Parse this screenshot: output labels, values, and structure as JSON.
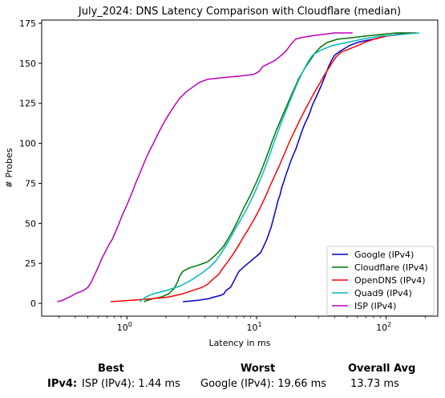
{
  "chart_data": {
    "type": "line",
    "title": "July_2024: DNS Latency Comparison with Cloudflare (median)",
    "xlabel": "Latency in ms",
    "ylabel": "# Probes",
    "xscale": "log",
    "xlim": [
      0.22,
      250
    ],
    "ylim": [
      -8,
      177
    ],
    "x_tick_labels": [
      "10^0",
      "10^1",
      "10^2"
    ],
    "x_tick_values": [
      1,
      10,
      100
    ],
    "y_ticks": [
      0,
      25,
      50,
      75,
      100,
      125,
      150,
      175
    ],
    "grid": false,
    "legend_position": "lower right",
    "series": [
      {
        "name": "Google (IPv4)",
        "color": "#0000cc",
        "points": [
          [
            2.7,
            1
          ],
          [
            3.6,
            2
          ],
          [
            4.3,
            3
          ],
          [
            4.7,
            4
          ],
          [
            5.3,
            5
          ],
          [
            5.6,
            6
          ],
          [
            5.8,
            8
          ],
          [
            6.3,
            10
          ],
          [
            6.5,
            12
          ],
          [
            6.7,
            14
          ],
          [
            6.9,
            16
          ],
          [
            7.1,
            18
          ],
          [
            7.3,
            20
          ],
          [
            7.8,
            22
          ],
          [
            8.3,
            24
          ],
          [
            8.9,
            26
          ],
          [
            9.5,
            28
          ],
          [
            10.2,
            30
          ],
          [
            10.8,
            32
          ],
          [
            11.4,
            36
          ],
          [
            12.0,
            40
          ],
          [
            12.5,
            44
          ],
          [
            13.0,
            48
          ],
          [
            13.4,
            52
          ],
          [
            13.8,
            56
          ],
          [
            14.2,
            60
          ],
          [
            14.6,
            64
          ],
          [
            15.2,
            68
          ],
          [
            15.6,
            72
          ],
          [
            16.2,
            76
          ],
          [
            16.8,
            80
          ],
          [
            17.5,
            84
          ],
          [
            18.2,
            88
          ],
          [
            19.0,
            92
          ],
          [
            20.0,
            96
          ],
          [
            20.8,
            100
          ],
          [
            21.6,
            104
          ],
          [
            22.5,
            108
          ],
          [
            23.5,
            112
          ],
          [
            24.8,
            116
          ],
          [
            26.0,
            120
          ],
          [
            27.0,
            124
          ],
          [
            28.5,
            128
          ],
          [
            30.0,
            132
          ],
          [
            31.5,
            136
          ],
          [
            33.0,
            140
          ],
          [
            34.5,
            144
          ],
          [
            36.0,
            148
          ],
          [
            38.0,
            152
          ],
          [
            40.0,
            155
          ],
          [
            45.0,
            158
          ],
          [
            52.0,
            161
          ],
          [
            60.0,
            163
          ],
          [
            68.0,
            164
          ],
          [
            80.0,
            165
          ],
          [
            100.0,
            167
          ],
          [
            120.0,
            168
          ],
          [
            150.0,
            169
          ]
        ]
      },
      {
        "name": "Cloudflare (IPv4)",
        "color": "#007700",
        "points": [
          [
            1.35,
            1
          ],
          [
            1.45,
            2
          ],
          [
            1.6,
            3
          ],
          [
            1.85,
            4
          ],
          [
            2.1,
            6
          ],
          [
            2.3,
            9
          ],
          [
            2.45,
            13
          ],
          [
            2.55,
            17
          ],
          [
            2.7,
            20
          ],
          [
            3.0,
            22
          ],
          [
            3.6,
            24
          ],
          [
            4.2,
            26
          ],
          [
            4.8,
            30
          ],
          [
            5.2,
            33
          ],
          [
            5.6,
            36
          ],
          [
            6.0,
            40
          ],
          [
            6.4,
            44
          ],
          [
            6.8,
            48
          ],
          [
            7.2,
            52
          ],
          [
            7.6,
            56
          ],
          [
            8.0,
            60
          ],
          [
            8.5,
            64
          ],
          [
            9.0,
            68
          ],
          [
            9.5,
            72
          ],
          [
            10.0,
            76
          ],
          [
            10.5,
            80
          ],
          [
            11.0,
            84
          ],
          [
            11.5,
            88
          ],
          [
            12.0,
            92
          ],
          [
            12.5,
            96
          ],
          [
            13.0,
            100
          ],
          [
            13.6,
            104
          ],
          [
            14.2,
            108
          ],
          [
            14.9,
            112
          ],
          [
            15.6,
            116
          ],
          [
            16.4,
            120
          ],
          [
            17.2,
            124
          ],
          [
            18.1,
            128
          ],
          [
            19.0,
            132
          ],
          [
            20.0,
            136
          ],
          [
            21.0,
            140
          ],
          [
            22.5,
            144
          ],
          [
            24.0,
            148
          ],
          [
            26.0,
            152
          ],
          [
            28.0,
            156
          ],
          [
            31.0,
            160
          ],
          [
            35.0,
            163
          ],
          [
            42.0,
            165
          ],
          [
            55.0,
            166
          ],
          [
            70.0,
            167
          ],
          [
            90.0,
            168
          ],
          [
            120.0,
            169
          ],
          [
            170.0,
            169
          ]
        ]
      },
      {
        "name": "OpenDNS (IPv4)",
        "color": "#ff0000",
        "points": [
          [
            0.75,
            1
          ],
          [
            1.1,
            2
          ],
          [
            1.6,
            3
          ],
          [
            2.1,
            4
          ],
          [
            2.7,
            6
          ],
          [
            3.2,
            8
          ],
          [
            3.8,
            10
          ],
          [
            4.2,
            12
          ],
          [
            4.6,
            15
          ],
          [
            5.1,
            18
          ],
          [
            5.5,
            22
          ],
          [
            6.0,
            26
          ],
          [
            6.5,
            30
          ],
          [
            7.0,
            34
          ],
          [
            7.5,
            38
          ],
          [
            8.0,
            42
          ],
          [
            8.6,
            46
          ],
          [
            9.2,
            50
          ],
          [
            9.8,
            54
          ],
          [
            10.4,
            58
          ],
          [
            11.0,
            62
          ],
          [
            11.6,
            66
          ],
          [
            12.2,
            70
          ],
          [
            12.8,
            74
          ],
          [
            13.5,
            78
          ],
          [
            14.2,
            82
          ],
          [
            15.0,
            86
          ],
          [
            15.7,
            90
          ],
          [
            16.5,
            94
          ],
          [
            17.3,
            98
          ],
          [
            18.2,
            102
          ],
          [
            19.2,
            106
          ],
          [
            20.3,
            110
          ],
          [
            21.4,
            114
          ],
          [
            22.7,
            118
          ],
          [
            24.0,
            122
          ],
          [
            25.6,
            126
          ],
          [
            27.2,
            130
          ],
          [
            29.0,
            134
          ],
          [
            31.0,
            138
          ],
          [
            33.0,
            142
          ],
          [
            35.5,
            146
          ],
          [
            38.0,
            150
          ],
          [
            41.0,
            154
          ],
          [
            45.0,
            157
          ],
          [
            52.0,
            159
          ],
          [
            60.0,
            161
          ],
          [
            68.0,
            163
          ],
          [
            80.0,
            165
          ],
          [
            100.0,
            167
          ],
          [
            130.0,
            168
          ],
          [
            170.0,
            169
          ]
        ]
      },
      {
        "name": "Quad9 (IPv4)",
        "color": "#00bbbb",
        "points": [
          [
            1.25,
            1
          ],
          [
            1.3,
            2
          ],
          [
            1.4,
            4
          ],
          [
            1.6,
            6
          ],
          [
            2.0,
            8
          ],
          [
            2.6,
            11
          ],
          [
            3.2,
            15
          ],
          [
            3.8,
            19
          ],
          [
            4.4,
            23
          ],
          [
            4.9,
            27
          ],
          [
            5.3,
            31
          ],
          [
            5.7,
            35
          ],
          [
            6.1,
            39
          ],
          [
            6.5,
            43
          ],
          [
            6.9,
            47
          ],
          [
            7.4,
            51
          ],
          [
            7.9,
            55
          ],
          [
            8.4,
            59
          ],
          [
            8.9,
            63
          ],
          [
            9.4,
            67
          ],
          [
            9.9,
            71
          ],
          [
            10.4,
            75
          ],
          [
            10.9,
            79
          ],
          [
            11.4,
            83
          ],
          [
            11.9,
            87
          ],
          [
            12.4,
            91
          ],
          [
            12.9,
            95
          ],
          [
            13.4,
            99
          ],
          [
            14.0,
            103
          ],
          [
            14.6,
            107
          ],
          [
            15.2,
            111
          ],
          [
            15.9,
            115
          ],
          [
            16.6,
            119
          ],
          [
            17.4,
            123
          ],
          [
            18.2,
            127
          ],
          [
            19.1,
            131
          ],
          [
            20.0,
            135
          ],
          [
            21.0,
            139
          ],
          [
            22.2,
            143
          ],
          [
            23.5,
            147
          ],
          [
            25.0,
            151
          ],
          [
            27.0,
            155
          ],
          [
            31.0,
            158
          ],
          [
            38.0,
            161
          ],
          [
            50.0,
            163
          ],
          [
            65.0,
            165
          ],
          [
            90.0,
            167
          ],
          [
            130.0,
            168
          ],
          [
            180.0,
            169
          ]
        ]
      },
      {
        "name": "ISP (IPv4)",
        "color": "#bb00bb",
        "points": [
          [
            0.29,
            1
          ],
          [
            0.32,
            2
          ],
          [
            0.36,
            4
          ],
          [
            0.4,
            6
          ],
          [
            0.46,
            8
          ],
          [
            0.5,
            10
          ],
          [
            0.53,
            13
          ],
          [
            0.55,
            16
          ],
          [
            0.58,
            20
          ],
          [
            0.61,
            24
          ],
          [
            0.64,
            28
          ],
          [
            0.68,
            32
          ],
          [
            0.72,
            36
          ],
          [
            0.77,
            40
          ],
          [
            0.81,
            44
          ],
          [
            0.85,
            48
          ],
          [
            0.89,
            52
          ],
          [
            0.93,
            56
          ],
          [
            0.98,
            60
          ],
          [
            1.03,
            64
          ],
          [
            1.08,
            68
          ],
          [
            1.13,
            72
          ],
          [
            1.18,
            76
          ],
          [
            1.24,
            80
          ],
          [
            1.3,
            84
          ],
          [
            1.36,
            88
          ],
          [
            1.43,
            92
          ],
          [
            1.51,
            96
          ],
          [
            1.6,
            100
          ],
          [
            1.69,
            104
          ],
          [
            1.79,
            108
          ],
          [
            1.9,
            112
          ],
          [
            2.03,
            116
          ],
          [
            2.18,
            120
          ],
          [
            2.35,
            124
          ],
          [
            2.55,
            128
          ],
          [
            2.85,
            132
          ],
          [
            3.2,
            135
          ],
          [
            3.6,
            138
          ],
          [
            4.2,
            140
          ],
          [
            5.5,
            141
          ],
          [
            7.5,
            142
          ],
          [
            9.5,
            143
          ],
          [
            10.5,
            145
          ],
          [
            11.2,
            148
          ],
          [
            12.5,
            150
          ],
          [
            14.0,
            152
          ],
          [
            15.5,
            155
          ],
          [
            17.0,
            158
          ],
          [
            18.5,
            162
          ],
          [
            20.0,
            165
          ],
          [
            22.0,
            166
          ],
          [
            26.0,
            167
          ],
          [
            32.0,
            168
          ],
          [
            40.0,
            169
          ],
          [
            55.0,
            169
          ]
        ]
      }
    ]
  },
  "summary": {
    "headers": {
      "best": "Best",
      "worst": "Worst",
      "overall": "Overall Avg"
    },
    "row": {
      "label": "IPv4:",
      "best": "ISP (IPv4): 1.44 ms",
      "worst": "Google (IPv4): 19.66 ms",
      "overall": "13.73 ms"
    }
  }
}
